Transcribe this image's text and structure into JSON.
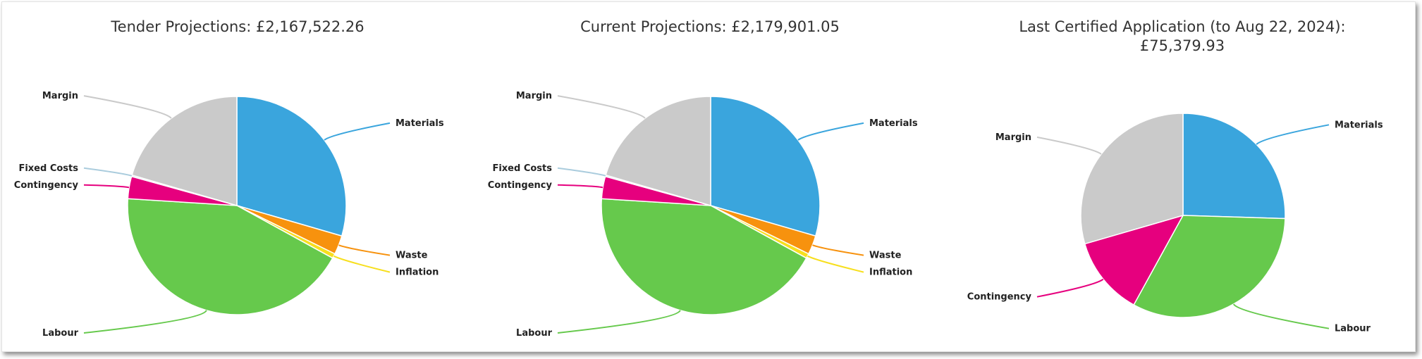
{
  "chart_data": [
    {
      "type": "pie",
      "title": "Tender Projections: £2,167,522.26",
      "slices": [
        {
          "label": "Materials",
          "value": 29.5,
          "color": "#3aa5dd"
        },
        {
          "label": "Waste",
          "value": 2.8,
          "color": "#f7920e"
        },
        {
          "label": "Inflation",
          "value": 0.7,
          "color": "#f7df1e"
        },
        {
          "label": "Labour",
          "value": 43.0,
          "color": "#66c94c"
        },
        {
          "label": "Contingency",
          "value": 3.3,
          "color": "#e6007e"
        },
        {
          "label": "Fixed Costs",
          "value": 0.2,
          "color": "#aaccdd"
        },
        {
          "label": "Margin",
          "value": 20.5,
          "color": "#cacaca"
        }
      ]
    },
    {
      "type": "pie",
      "title": "Current Projections: £2,179,901.05",
      "slices": [
        {
          "label": "Materials",
          "value": 29.5,
          "color": "#3aa5dd"
        },
        {
          "label": "Waste",
          "value": 2.8,
          "color": "#f7920e"
        },
        {
          "label": "Inflation",
          "value": 0.7,
          "color": "#f7df1e"
        },
        {
          "label": "Labour",
          "value": 43.0,
          "color": "#66c94c"
        },
        {
          "label": "Contingency",
          "value": 3.3,
          "color": "#e6007e"
        },
        {
          "label": "Fixed Costs",
          "value": 0.2,
          "color": "#aaccdd"
        },
        {
          "label": "Margin",
          "value": 20.5,
          "color": "#cacaca"
        }
      ]
    },
    {
      "type": "pie",
      "title": "Last Certified Application (to Aug 22, 2024): £75,379.93",
      "title_lines": [
        "Last Certified Application (to Aug 22, 2024):",
        "£75,379.93"
      ],
      "slices": [
        {
          "label": "Materials",
          "value": 25.5,
          "color": "#3aa5dd"
        },
        {
          "label": "Labour",
          "value": 32.5,
          "color": "#66c94c"
        },
        {
          "label": "Contingency",
          "value": 12.5,
          "color": "#e6007e"
        },
        {
          "label": "Margin",
          "value": 29.5,
          "color": "#cacaca"
        }
      ]
    }
  ]
}
